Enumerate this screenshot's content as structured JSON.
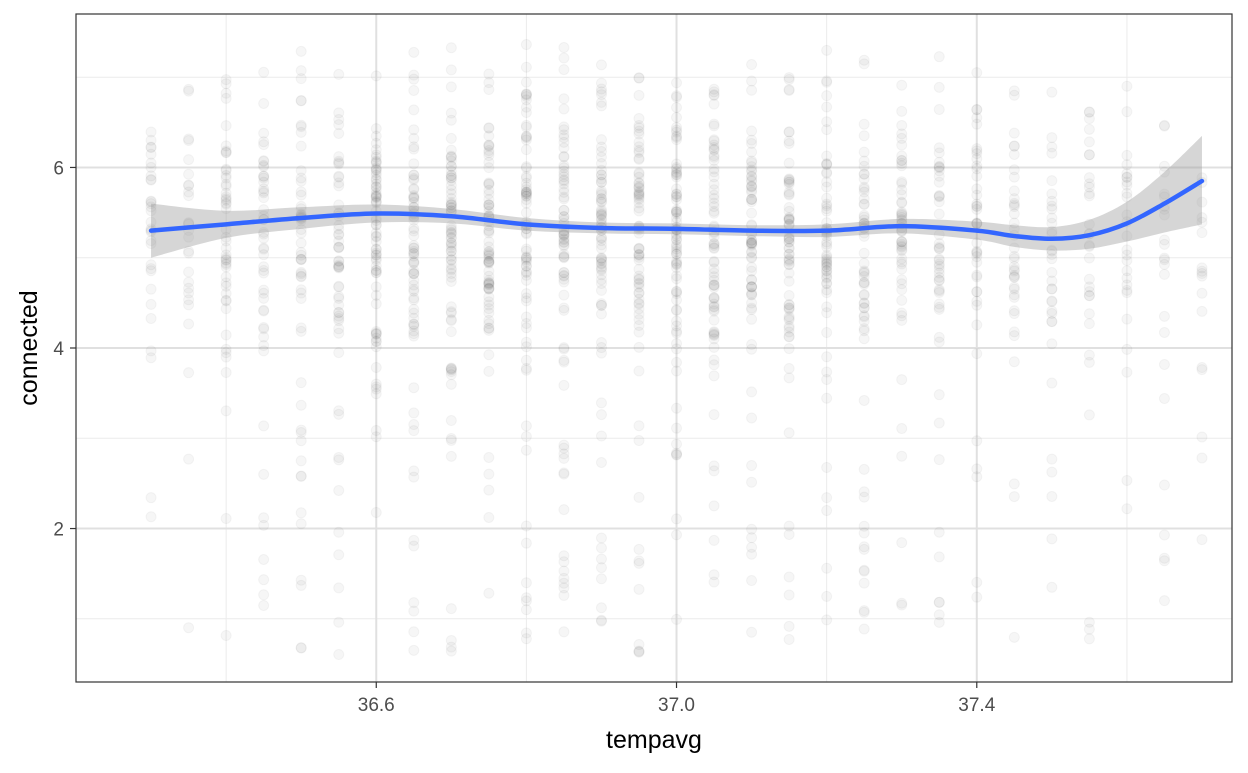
{
  "chart_data": {
    "type": "scatter",
    "title": "",
    "xlabel": "tempavg",
    "ylabel": "connected",
    "xlim": [
      36.2,
      37.74
    ],
    "ylim": [
      0.3,
      7.7
    ],
    "x_ticks": [
      36.6,
      37.0,
      37.4
    ],
    "x_tick_labels": [
      "36.6",
      "37.0",
      "37.4"
    ],
    "y_ticks": [
      2,
      4,
      6
    ],
    "y_tick_labels": [
      "2",
      "4",
      "6"
    ],
    "grid": true,
    "legend": "none",
    "colors": {
      "points": "#000000",
      "smooth_line": "#3366FF",
      "confidence_band": "#999999",
      "grid": "#ebebeb",
      "panel_border": "#333333"
    },
    "points_note": "semi-transparent grey points in vertical columns at each tempavg value",
    "point_columns": {
      "x": [
        36.3,
        36.35,
        36.4,
        36.45,
        36.5,
        36.55,
        36.6,
        36.65,
        36.7,
        36.75,
        36.8,
        36.85,
        36.9,
        36.95,
        37.0,
        37.05,
        37.1,
        37.15,
        37.2,
        37.25,
        37.3,
        37.35,
        37.4,
        37.45,
        37.5,
        37.55,
        37.6,
        37.65,
        37.7
      ],
      "ymin": [
        0.9,
        0.7,
        0.6,
        0.6,
        0.6,
        0.6,
        0.6,
        0.6,
        0.6,
        0.6,
        0.6,
        0.6,
        0.6,
        0.6,
        0.6,
        0.6,
        0.6,
        0.6,
        0.6,
        0.6,
        0.6,
        0.6,
        0.6,
        0.6,
        0.6,
        0.6,
        0.6,
        0.9,
        1.5
      ],
      "ymax": [
        7.3,
        7.3,
        7.3,
        7.3,
        7.3,
        7.3,
        7.4,
        7.4,
        7.4,
        7.4,
        7.4,
        7.4,
        7.4,
        7.4,
        7.4,
        7.4,
        7.4,
        7.3,
        7.3,
        7.3,
        7.3,
        7.3,
        7.3,
        7.3,
        7.3,
        7.3,
        7.3,
        7.3,
        6.5
      ],
      "density": [
        0.35,
        0.3,
        0.6,
        0.6,
        0.7,
        0.7,
        0.9,
        0.95,
        1.0,
        1.0,
        1.0,
        1.0,
        1.0,
        1.0,
        1.0,
        0.95,
        0.9,
        0.9,
        0.8,
        0.8,
        0.7,
        0.6,
        0.5,
        0.45,
        0.4,
        0.35,
        0.3,
        0.25,
        0.15
      ]
    },
    "series": [
      {
        "x": [
          36.3,
          36.4,
          36.5,
          36.6,
          36.7,
          36.8,
          36.9,
          37.0,
          37.1,
          37.2,
          37.3,
          37.4,
          37.45,
          37.5,
          37.55,
          37.6,
          37.65,
          37.7
        ],
        "y": [
          5.3,
          5.37,
          5.44,
          5.49,
          5.46,
          5.37,
          5.33,
          5.32,
          5.3,
          5.3,
          5.35,
          5.3,
          5.24,
          5.21,
          5.25,
          5.38,
          5.6,
          5.85
        ],
        "ci_low": [
          5.0,
          5.22,
          5.32,
          5.39,
          5.38,
          5.3,
          5.27,
          5.26,
          5.24,
          5.23,
          5.27,
          5.2,
          5.12,
          5.08,
          5.1,
          5.18,
          5.28,
          5.37
        ],
        "ci_high": [
          5.6,
          5.52,
          5.56,
          5.59,
          5.54,
          5.44,
          5.39,
          5.38,
          5.36,
          5.37,
          5.43,
          5.4,
          5.36,
          5.34,
          5.42,
          5.62,
          5.95,
          6.35
        ]
      }
    ]
  }
}
